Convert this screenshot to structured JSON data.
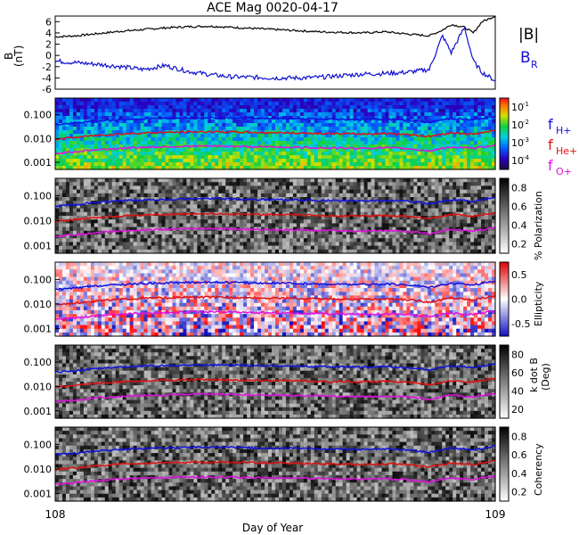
{
  "figure": {
    "title": "ACE Mag 0020-04-17",
    "x_axis": {
      "label": "Day of Year",
      "ticks": [
        "108",
        "109"
      ],
      "range": [
        108,
        109
      ]
    }
  },
  "colors": {
    "h_plus": "#1010e0",
    "he_plus": "#e01010",
    "o_plus": "#e010e0",
    "btotal": "#000000",
    "br": "#1010d0"
  },
  "legend": {
    "btotal": "|B|",
    "br": "B",
    "br_sub": "R",
    "f_h": "f",
    "f_h_sub": "H+",
    "f_he": "f",
    "f_he_sub": "He+",
    "f_o": "f",
    "f_o_sub": "O+"
  },
  "chart_data": [
    {
      "type": "line",
      "panel": "magnetic-field",
      "ylabel": "B",
      "yunit": "(nT)",
      "ylim": [
        -6,
        7
      ],
      "yticks": [
        "6",
        "4",
        "2",
        "0",
        "-2",
        "-4",
        "-6"
      ],
      "x": [
        108.0,
        108.05,
        108.1,
        108.15,
        108.2,
        108.25,
        108.3,
        108.35,
        108.4,
        108.45,
        108.5,
        108.55,
        108.6,
        108.65,
        108.7,
        108.75,
        108.8,
        108.85,
        108.88,
        108.9,
        108.93,
        108.95,
        108.97,
        109.0
      ],
      "series": [
        {
          "name": "|B|",
          "values": [
            3.3,
            3.5,
            3.9,
            4.3,
            4.6,
            4.9,
            5.1,
            5.2,
            5.0,
            4.8,
            4.6,
            4.4,
            4.2,
            4.1,
            4.0,
            4.2,
            3.8,
            3.5,
            4.5,
            5.5,
            5.0,
            4.0,
            6.0,
            7.0
          ]
        },
        {
          "name": "B_R",
          "values": [
            -1.0,
            -1.3,
            -1.6,
            -2.0,
            -2.5,
            -1.8,
            -2.8,
            -3.4,
            -3.8,
            -3.9,
            -4.0,
            -4.0,
            -3.9,
            -3.6,
            -3.3,
            -3.2,
            -3.0,
            -2.5,
            3.5,
            0.5,
            5.0,
            -1.0,
            -3.0,
            -4.5
          ]
        }
      ]
    },
    {
      "type": "heatmap",
      "panel": "power-spectrum",
      "ylim": [
        0.0005,
        0.5
      ],
      "yticks": [
        "0.100",
        "0.010",
        "0.001"
      ],
      "colorbar": {
        "ticks": [
          "10",
          "10",
          "10",
          "10"
        ],
        "ticks_sup": [
          "-1",
          "-2",
          "-3",
          "-4"
        ],
        "colormap": "rainbow"
      }
    },
    {
      "type": "heatmap",
      "panel": "polarization",
      "ylim": [
        0.0005,
        0.5
      ],
      "yticks": [
        "0.100",
        "0.010",
        "0.001"
      ],
      "colorbar": {
        "label": "% Polarization",
        "ticks": [
          "0.8",
          "0.6",
          "0.4",
          "0.2"
        ],
        "colormap": "gray"
      }
    },
    {
      "type": "heatmap",
      "panel": "ellipticity",
      "ylim": [
        0.0005,
        0.5
      ],
      "yticks": [
        "0.100",
        "0.010",
        "0.001"
      ],
      "colorbar": {
        "label": "Ellipticity",
        "ticks": [
          "0.5",
          "0.0",
          "-0.5"
        ],
        "colormap": "blue-white-red"
      }
    },
    {
      "type": "heatmap",
      "panel": "k-dot-b",
      "ylim": [
        0.0005,
        0.5
      ],
      "yticks": [
        "0.100",
        "0.010",
        "0.001"
      ],
      "colorbar": {
        "label": "k dot B",
        "label2": "(Deg)",
        "ticks": [
          "80",
          "60",
          "40",
          "20"
        ],
        "colormap": "gray"
      }
    },
    {
      "type": "heatmap",
      "panel": "coherency",
      "ylim": [
        0.0005,
        0.5
      ],
      "yticks": [
        "0.100",
        "0.010",
        "0.001"
      ],
      "colorbar": {
        "label": "Coherency",
        "ticks": [
          "0.8",
          "0.6",
          "0.4",
          "0.2"
        ],
        "colormap": "gray"
      }
    }
  ],
  "gyrofrequency": {
    "x": [
      108.0,
      108.05,
      108.1,
      108.15,
      108.2,
      108.25,
      108.3,
      108.35,
      108.4,
      108.45,
      108.5,
      108.55,
      108.6,
      108.65,
      108.7,
      108.75,
      108.8,
      108.85,
      108.9,
      108.95,
      109.0
    ],
    "f_h_plus": [
      0.038,
      0.045,
      0.055,
      0.062,
      0.068,
      0.072,
      0.075,
      0.077,
      0.075,
      0.072,
      0.07,
      0.068,
      0.065,
      0.063,
      0.062,
      0.065,
      0.06,
      0.048,
      0.07,
      0.06,
      0.085
    ]
  }
}
